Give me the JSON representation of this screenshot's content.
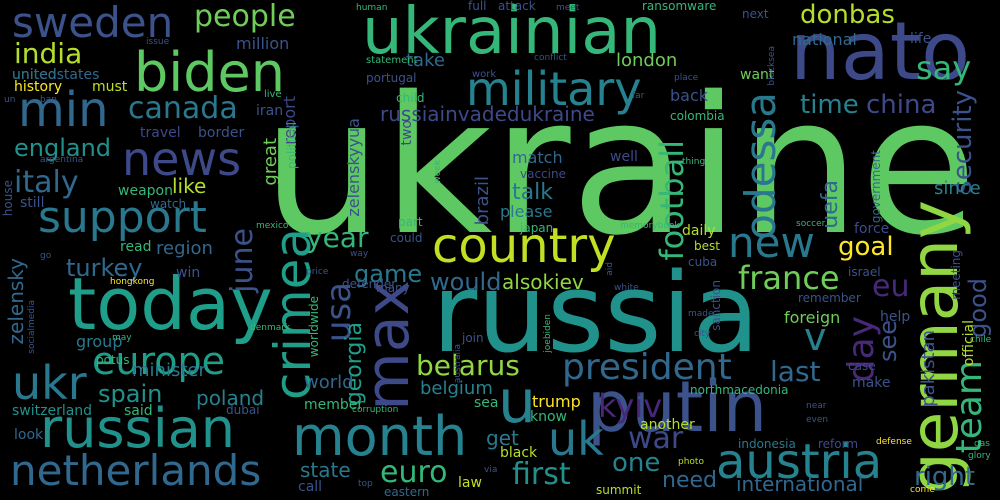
{
  "background": "#000000",
  "palette": [
    "#fde725",
    "#b5de2b",
    "#6ece58",
    "#35b779",
    "#1f9e89",
    "#26828e",
    "#31688e",
    "#3e4989",
    "#482878",
    "#440154"
  ],
  "words": [
    {
      "text": "ukraine",
      "color": "#5ec962"
    },
    {
      "text": "russia",
      "color": "#21918c"
    },
    {
      "text": "putin",
      "color": "#3b528b"
    },
    {
      "text": "ukrainian",
      "color": "#35b779"
    },
    {
      "text": "nato",
      "color": "#3e4989"
    },
    {
      "text": "germany",
      "color": "#90d743"
    },
    {
      "text": "today",
      "color": "#1f9e89"
    },
    {
      "text": "russian",
      "color": "#21918c"
    },
    {
      "text": "month",
      "color": "#26828e"
    },
    {
      "text": "netherlands",
      "color": "#31688e"
    },
    {
      "text": "max",
      "color": "#3e4989"
    },
    {
      "text": "crimea",
      "color": "#1f9e89"
    },
    {
      "text": "biden",
      "color": "#5ec962"
    },
    {
      "text": "country",
      "color": "#c2df23"
    },
    {
      "text": "austria",
      "color": "#26828e"
    },
    {
      "text": "military",
      "color": "#26828e"
    },
    {
      "text": "support",
      "color": "#2a788e"
    },
    {
      "text": "min",
      "color": "#31688e"
    },
    {
      "text": "sweden",
      "color": "#3b528b"
    },
    {
      "text": "news",
      "color": "#3e4989"
    },
    {
      "text": "europe",
      "color": "#1f9e89"
    },
    {
      "text": "ukr",
      "color": "#2a788e"
    },
    {
      "text": "odessa",
      "color": "#2a788e"
    },
    {
      "text": "new",
      "color": "#2a788e"
    },
    {
      "text": "u",
      "color": "#26828e"
    },
    {
      "text": "uk",
      "color": "#2a788e"
    },
    {
      "text": "president",
      "color": "#31688e"
    },
    {
      "text": "war",
      "color": "#3e4989"
    },
    {
      "text": "france",
      "color": "#6ece58"
    },
    {
      "text": "team",
      "color": "#35b779"
    },
    {
      "text": "usa",
      "color": "#3b528b"
    },
    {
      "text": "football",
      "color": "#35b779"
    },
    {
      "text": "day",
      "color": "#482878"
    },
    {
      "text": "euro",
      "color": "#35b779"
    },
    {
      "text": "first",
      "color": "#21918c"
    },
    {
      "text": "donbas",
      "color": "#b5de2b"
    },
    {
      "text": "india",
      "color": "#b5de2b"
    },
    {
      "text": "canada",
      "color": "#2a788e"
    },
    {
      "text": "time",
      "color": "#26828e"
    },
    {
      "text": "china",
      "color": "#3e4989"
    },
    {
      "text": "june",
      "color": "#3b528b"
    },
    {
      "text": "italy",
      "color": "#31688e"
    },
    {
      "text": "england",
      "color": "#21918c"
    },
    {
      "text": "kyiv",
      "color": "#482878"
    },
    {
      "text": "georgia",
      "color": "#1f9e89"
    },
    {
      "text": "belarus",
      "color": "#90d743"
    },
    {
      "text": "spain",
      "color": "#21918c"
    },
    {
      "text": "people",
      "color": "#6ece58"
    },
    {
      "text": "say",
      "color": "#35b779"
    },
    {
      "text": "goal",
      "color": "#fde725"
    },
    {
      "text": "year",
      "color": "#35b779"
    },
    {
      "text": "turkey",
      "color": "#31688e"
    },
    {
      "text": "security",
      "color": "#3b528b"
    },
    {
      "text": "last",
      "color": "#31688e"
    },
    {
      "text": "eu",
      "color": "#482878"
    },
    {
      "text": "v",
      "color": "#26828e"
    },
    {
      "text": "see",
      "color": "#3b528b"
    },
    {
      "text": "one",
      "color": "#26828e"
    },
    {
      "text": "need",
      "color": "#31688e"
    },
    {
      "text": "international",
      "color": "#31688e"
    },
    {
      "text": "right",
      "color": "#31688e"
    },
    {
      "text": "good",
      "color": "#3b528b"
    },
    {
      "text": "game",
      "color": "#2a788e"
    },
    {
      "text": "would",
      "color": "#31688e"
    },
    {
      "text": "alsokiev",
      "color": "#90d743"
    },
    {
      "text": "talk",
      "color": "#2a788e"
    },
    {
      "text": "like",
      "color": "#b5de2b"
    },
    {
      "text": "world",
      "color": "#31688e"
    },
    {
      "text": "poland",
      "color": "#26828e"
    },
    {
      "text": "zelensky",
      "color": "#31688e"
    },
    {
      "text": "state",
      "color": "#2a788e"
    },
    {
      "text": "get",
      "color": "#2a788e"
    },
    {
      "text": "uefa",
      "color": "#31688e"
    },
    {
      "text": "pakistan",
      "color": "#3b528b"
    },
    {
      "text": "russiainvadedukraine",
      "color": "#3e4989"
    },
    {
      "text": "zelenskyyua",
      "color": "#3b528b"
    },
    {
      "text": "brazil",
      "color": "#3b528b"
    },
    {
      "text": "match",
      "color": "#31688e"
    },
    {
      "text": "please",
      "color": "#2a788e"
    },
    {
      "text": "belgium",
      "color": "#26828e"
    },
    {
      "text": "group",
      "color": "#2a788e"
    },
    {
      "text": "minister",
      "color": "#2a788e"
    },
    {
      "text": "switzerland",
      "color": "#21918c"
    },
    {
      "text": "united",
      "color": "#35b779"
    },
    {
      "text": "london",
      "color": "#6ece58"
    },
    {
      "text": "take",
      "color": "#31688e"
    },
    {
      "text": "national",
      "color": "#31688e"
    },
    {
      "text": "life",
      "color": "#3b528b"
    },
    {
      "text": "back",
      "color": "#3b528b"
    },
    {
      "text": "want",
      "color": "#6ece58"
    },
    {
      "text": "since",
      "color": "#26828e"
    },
    {
      "text": "foreign",
      "color": "#6ece58"
    },
    {
      "text": "force",
      "color": "#3e4989"
    },
    {
      "text": "region",
      "color": "#31688e"
    },
    {
      "text": "million",
      "color": "#3b528b"
    },
    {
      "text": "unitedstates",
      "color": "#31688e"
    },
    {
      "text": "history",
      "color": "#fde725"
    },
    {
      "text": "must",
      "color": "#c2df23"
    },
    {
      "text": "great",
      "color": "#6ece58"
    },
    {
      "text": "report",
      "color": "#3e4989"
    },
    {
      "text": "well",
      "color": "#3e4989"
    },
    {
      "text": "weapon",
      "color": "#35b779"
    },
    {
      "text": "border",
      "color": "#3b528b"
    },
    {
      "text": "iran",
      "color": "#3b528b"
    },
    {
      "text": "travel",
      "color": "#3e4989"
    },
    {
      "text": "house",
      "color": "#3b528b"
    },
    {
      "text": "still",
      "color": "#3b528b"
    },
    {
      "text": "watch",
      "color": "#31688e"
    },
    {
      "text": "win",
      "color": "#3b528b"
    },
    {
      "text": "read",
      "color": "#35b779"
    },
    {
      "text": "potus",
      "color": "#35b779"
    },
    {
      "text": "said",
      "color": "#35b779"
    },
    {
      "text": "dubai",
      "color": "#3b528b"
    },
    {
      "text": "look",
      "color": "#31688e"
    },
    {
      "text": "member",
      "color": "#35b779"
    },
    {
      "text": "sea",
      "color": "#35b779"
    },
    {
      "text": "know",
      "color": "#35b779"
    },
    {
      "text": "trump",
      "color": "#fde725"
    },
    {
      "text": "another",
      "color": "#b5de2b"
    },
    {
      "text": "black",
      "color": "#b5de2b"
    },
    {
      "text": "law",
      "color": "#c2df23"
    },
    {
      "text": "summit",
      "color": "#b5de2b"
    },
    {
      "text": "call",
      "color": "#3b528b"
    },
    {
      "text": "eastern",
      "color": "#31688e"
    },
    {
      "text": "indonesia",
      "color": "#2a788e"
    },
    {
      "text": "reform",
      "color": "#3e4989"
    },
    {
      "text": "make",
      "color": "#3b528b"
    },
    {
      "text": "remember",
      "color": "#3b528b"
    },
    {
      "text": "help",
      "color": "#3b528b"
    },
    {
      "text": "cuba",
      "color": "#3b528b"
    },
    {
      "text": "israel",
      "color": "#3b528b"
    },
    {
      "text": "daily",
      "color": "#b5de2b"
    },
    {
      "text": "best",
      "color": "#b5de2b"
    },
    {
      "text": "northmacedonia",
      "color": "#35b779"
    },
    {
      "text": "child",
      "color": "#35b779"
    },
    {
      "text": "portugal",
      "color": "#3b528b"
    },
    {
      "text": "colombia",
      "color": "#35b779"
    },
    {
      "text": "defender",
      "color": "#3b528b"
    },
    {
      "text": "could",
      "color": "#3b528b"
    },
    {
      "text": "part",
      "color": "#35b779"
    },
    {
      "text": "japan",
      "color": "#35b779"
    },
    {
      "text": "many",
      "color": "#3b528b"
    },
    {
      "text": "join",
      "color": "#3b528b"
    },
    {
      "text": "worldwide",
      "color": "#35b779"
    },
    {
      "text": "political",
      "color": "#35b779"
    },
    {
      "text": "two",
      "color": "#3e4989"
    },
    {
      "text": "vaccine",
      "color": "#3e4989"
    },
    {
      "text": "government",
      "color": "#31688e"
    },
    {
      "text": "meeting",
      "color": "#3b528b"
    },
    {
      "text": "official",
      "color": "#b5de2b"
    },
    {
      "text": "sanction",
      "color": "#3b528b"
    },
    {
      "text": "case",
      "color": "#3e4989"
    },
    {
      "text": "attack",
      "color": "#3b528b"
    },
    {
      "text": "full",
      "color": "#3b528b"
    },
    {
      "text": "work",
      "color": "#3b528b"
    },
    {
      "text": "next",
      "color": "#3b528b"
    },
    {
      "text": "statement",
      "color": "#35b779"
    },
    {
      "text": "live",
      "color": "#35b779"
    },
    {
      "text": "ransomware",
      "color": "#35b779"
    },
    {
      "text": "conflict",
      "color": "#3b528b"
    },
    {
      "text": "meet",
      "color": "#3b528b"
    },
    {
      "text": "human",
      "color": "#35b779"
    },
    {
      "text": "issue",
      "color": "#3b528b"
    },
    {
      "text": "argentina",
      "color": "#3b528b"
    },
    {
      "text": "socialmedia",
      "color": "#3b528b"
    },
    {
      "text": "hongkong",
      "color": "#fde725"
    },
    {
      "text": "price",
      "color": "#3b528b"
    },
    {
      "text": "way",
      "color": "#3b528b"
    },
    {
      "text": "mexico",
      "color": "#35b779"
    },
    {
      "text": "denmark",
      "color": "#35b779"
    },
    {
      "text": "australia",
      "color": "#3b528b"
    },
    {
      "text": "joebiden",
      "color": "#35b779"
    },
    {
      "text": "white",
      "color": "#3b528b"
    },
    {
      "text": "made",
      "color": "#3b528b"
    },
    {
      "text": "city",
      "color": "#3b528b"
    },
    {
      "text": "memorybook",
      "color": "#35b779"
    },
    {
      "text": "soccer",
      "color": "#35b779"
    },
    {
      "text": "thing",
      "color": "#35b779"
    },
    {
      "text": "blacksea",
      "color": "#3b528b"
    },
    {
      "text": "place",
      "color": "#3b528b"
    },
    {
      "text": "far",
      "color": "#3b528b"
    },
    {
      "text": "aid",
      "color": "#3b528b"
    },
    {
      "text": "chile",
      "color": "#35b779"
    },
    {
      "text": "gas",
      "color": "#35b779"
    },
    {
      "text": "glory",
      "color": "#35b779"
    },
    {
      "text": "defense",
      "color": "#fde725"
    },
    {
      "text": "come",
      "color": "#fde725"
    },
    {
      "text": "photo",
      "color": "#b5de2b"
    },
    {
      "text": "via",
      "color": "#3b528b"
    },
    {
      "text": "even",
      "color": "#3b528b"
    },
    {
      "text": "near",
      "color": "#3b528b"
    },
    {
      "text": "corruption",
      "color": "#35b779"
    },
    {
      "text": "top",
      "color": "#3b528b"
    },
    {
      "text": "week",
      "color": "#35b779"
    },
    {
      "text": "un",
      "color": "#3b528b"
    },
    {
      "text": "ban",
      "color": "#3b528b"
    },
    {
      "text": "go",
      "color": "#3b528b"
    },
    {
      "text": "may",
      "color": "#35b779"
    }
  ]
}
